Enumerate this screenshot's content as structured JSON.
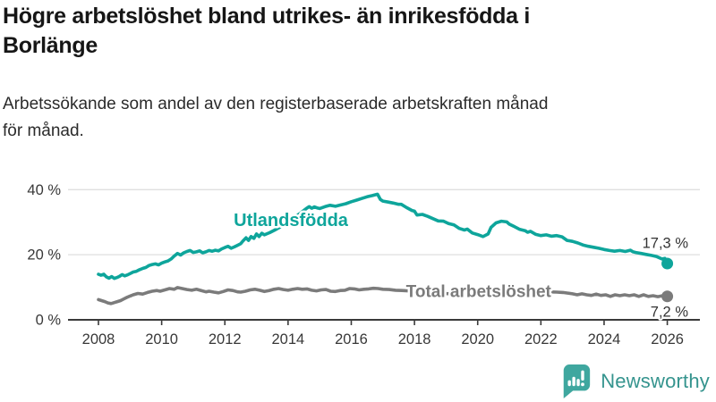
{
  "header": {
    "title": "Högre arbetslöshet bland utrikes- än inrikesfödda i Borlänge",
    "title_lines": [
      "Högre arbetslöshet bland utrikes- än inrikesfödda i",
      "Borlänge"
    ],
    "subtitle_lines": [
      "Arbetssökande som andel av den registerbaserade arbetskraften månad",
      "för månad."
    ]
  },
  "footer": {
    "brand": "Newsworthy"
  },
  "colors": {
    "utlandsfodda_line": "#0EA59B",
    "total_line": "#7B7B7B",
    "gridline": "#DFDFDF",
    "axis": "#3A3A3A",
    "logo_icon": "#3FA79F",
    "logo_text": "#35948E"
  },
  "chart_data": {
    "type": "line",
    "title": "Högre arbetslöshet bland utrikes- än inrikesfödda i Borlänge",
    "subtitle": "Arbetssökande som andel av den registerbaserade arbetskraften månad för månad.",
    "xlabel": "",
    "ylabel": "",
    "xlim": [
      2007.05,
      2027.05
    ],
    "ylim": [
      0,
      42
    ],
    "grid": "horizontal",
    "legend_position": "inline-labels",
    "x_ticks": [
      {
        "v": 2008,
        "label": "2008"
      },
      {
        "v": 2010,
        "label": "2010"
      },
      {
        "v": 2012,
        "label": "2012"
      },
      {
        "v": 2014,
        "label": "2014"
      },
      {
        "v": 2016,
        "label": "2016"
      },
      {
        "v": 2018,
        "label": "2018"
      },
      {
        "v": 2020,
        "label": "2020"
      },
      {
        "v": 2022,
        "label": "2022"
      },
      {
        "v": 2024,
        "label": "2024"
      },
      {
        "v": 2026,
        "label": "2026"
      }
    ],
    "y_ticks": [
      {
        "v": 0,
        "label": "0 %"
      },
      {
        "v": 20,
        "label": "20 %"
      },
      {
        "v": 40,
        "label": "40 %"
      }
    ],
    "series": [
      {
        "name": "Utlandsfödda",
        "color": "#0EA59B",
        "label_pos": [
          2014.09,
          30.6
        ],
        "label_font": 20,
        "end_label": "17,3 %",
        "end_value": 17.3,
        "points": [
          [
            2008.0,
            14.0
          ],
          [
            2008.08,
            13.7
          ],
          [
            2008.17,
            14.0
          ],
          [
            2008.25,
            13.2
          ],
          [
            2008.33,
            12.8
          ],
          [
            2008.42,
            13.3
          ],
          [
            2008.5,
            12.7
          ],
          [
            2008.58,
            13.0
          ],
          [
            2008.67,
            13.4
          ],
          [
            2008.75,
            13.9
          ],
          [
            2008.83,
            13.5
          ],
          [
            2008.92,
            13.8
          ],
          [
            2009.0,
            14.2
          ],
          [
            2009.1,
            14.7
          ],
          [
            2009.2,
            14.9
          ],
          [
            2009.3,
            15.4
          ],
          [
            2009.4,
            15.8
          ],
          [
            2009.5,
            16.1
          ],
          [
            2009.6,
            16.7
          ],
          [
            2009.7,
            17.0
          ],
          [
            2009.8,
            17.2
          ],
          [
            2009.9,
            16.9
          ],
          [
            2010.0,
            17.4
          ],
          [
            2010.1,
            17.8
          ],
          [
            2010.2,
            18.1
          ],
          [
            2010.3,
            18.7
          ],
          [
            2010.4,
            19.6
          ],
          [
            2010.5,
            20.4
          ],
          [
            2010.6,
            19.9
          ],
          [
            2010.7,
            20.6
          ],
          [
            2010.8,
            21.0
          ],
          [
            2010.9,
            21.3
          ],
          [
            2011.0,
            20.7
          ],
          [
            2011.1,
            20.9
          ],
          [
            2011.2,
            21.2
          ],
          [
            2011.3,
            20.6
          ],
          [
            2011.4,
            20.9
          ],
          [
            2011.5,
            21.3
          ],
          [
            2011.6,
            21.1
          ],
          [
            2011.7,
            21.4
          ],
          [
            2011.8,
            21.2
          ],
          [
            2011.9,
            21.8
          ],
          [
            2012.0,
            22.2
          ],
          [
            2012.1,
            22.6
          ],
          [
            2012.2,
            22.0
          ],
          [
            2012.3,
            22.4
          ],
          [
            2012.4,
            22.9
          ],
          [
            2012.5,
            23.4
          ],
          [
            2012.58,
            24.3
          ],
          [
            2012.67,
            25.2
          ],
          [
            2012.75,
            24.4
          ],
          [
            2012.83,
            25.6
          ],
          [
            2012.92,
            25.0
          ],
          [
            2013.0,
            26.4
          ],
          [
            2013.08,
            25.6
          ],
          [
            2013.17,
            26.6
          ],
          [
            2013.25,
            26.1
          ],
          [
            2013.42,
            26.8
          ],
          [
            2013.58,
            27.6
          ],
          [
            2013.75,
            28.5
          ],
          [
            2013.92,
            29.5
          ],
          [
            2014.08,
            30.6
          ],
          [
            2014.25,
            31.8
          ],
          [
            2014.42,
            33.0
          ],
          [
            2014.5,
            33.6
          ],
          [
            2014.58,
            34.2
          ],
          [
            2014.67,
            34.8
          ],
          [
            2014.75,
            34.3
          ],
          [
            2014.83,
            34.7
          ],
          [
            2014.92,
            34.4
          ],
          [
            2015.0,
            34.2
          ],
          [
            2015.17,
            34.8
          ],
          [
            2015.33,
            35.2
          ],
          [
            2015.5,
            34.9
          ],
          [
            2015.67,
            35.3
          ],
          [
            2015.83,
            35.7
          ],
          [
            2016.0,
            36.3
          ],
          [
            2016.17,
            36.8
          ],
          [
            2016.33,
            37.3
          ],
          [
            2016.5,
            37.8
          ],
          [
            2016.67,
            38.2
          ],
          [
            2016.83,
            38.6
          ],
          [
            2016.92,
            37.0
          ],
          [
            2017.0,
            36.5
          ],
          [
            2017.17,
            36.2
          ],
          [
            2017.33,
            35.9
          ],
          [
            2017.5,
            35.5
          ],
          [
            2017.58,
            35.5
          ],
          [
            2017.75,
            34.5
          ],
          [
            2017.92,
            33.6
          ],
          [
            2018.0,
            33.4
          ],
          [
            2018.08,
            32.2
          ],
          [
            2018.25,
            32.4
          ],
          [
            2018.42,
            31.8
          ],
          [
            2018.58,
            31.1
          ],
          [
            2018.75,
            30.4
          ],
          [
            2018.92,
            30.3
          ],
          [
            2019.08,
            29.6
          ],
          [
            2019.25,
            29.2
          ],
          [
            2019.42,
            28.1
          ],
          [
            2019.58,
            27.6
          ],
          [
            2019.67,
            27.9
          ],
          [
            2019.83,
            26.7
          ],
          [
            2020.0,
            26.2
          ],
          [
            2020.17,
            25.6
          ],
          [
            2020.33,
            26.4
          ],
          [
            2020.42,
            28.4
          ],
          [
            2020.58,
            29.8
          ],
          [
            2020.75,
            30.3
          ],
          [
            2020.92,
            30.1
          ],
          [
            2021.0,
            29.4
          ],
          [
            2021.17,
            28.6
          ],
          [
            2021.33,
            27.8
          ],
          [
            2021.5,
            27.4
          ],
          [
            2021.58,
            26.9
          ],
          [
            2021.67,
            27.2
          ],
          [
            2021.83,
            26.3
          ],
          [
            2022.0,
            25.9
          ],
          [
            2022.17,
            26.1
          ],
          [
            2022.33,
            25.7
          ],
          [
            2022.5,
            25.9
          ],
          [
            2022.67,
            25.5
          ],
          [
            2022.83,
            24.4
          ],
          [
            2023.0,
            24.1
          ],
          [
            2023.17,
            23.6
          ],
          [
            2023.33,
            23.0
          ],
          [
            2023.5,
            22.6
          ],
          [
            2023.67,
            22.3
          ],
          [
            2023.83,
            22.0
          ],
          [
            2024.0,
            21.6
          ],
          [
            2024.17,
            21.3
          ],
          [
            2024.33,
            21.1
          ],
          [
            2024.5,
            21.3
          ],
          [
            2024.67,
            21.0
          ],
          [
            2024.83,
            21.4
          ],
          [
            2024.92,
            20.9
          ],
          [
            2025.0,
            20.7
          ],
          [
            2025.17,
            20.4
          ],
          [
            2025.33,
            20.1
          ],
          [
            2025.5,
            19.8
          ],
          [
            2025.67,
            19.4
          ],
          [
            2025.83,
            18.7
          ],
          [
            2025.92,
            18.9
          ],
          [
            2026.0,
            17.3
          ]
        ]
      },
      {
        "name": "Total arbetslöshet",
        "color": "#7B7B7B",
        "label_pos": [
          2020.03,
          8.8
        ],
        "label_font": 19,
        "end_label": "7,2 %",
        "end_value": 7.2,
        "points": [
          [
            2008.0,
            6.2
          ],
          [
            2008.1,
            5.9
          ],
          [
            2008.2,
            5.6
          ],
          [
            2008.3,
            5.2
          ],
          [
            2008.4,
            5.0
          ],
          [
            2008.5,
            5.3
          ],
          [
            2008.6,
            5.6
          ],
          [
            2008.7,
            5.9
          ],
          [
            2008.8,
            6.4
          ],
          [
            2008.9,
            6.9
          ],
          [
            2009.0,
            7.3
          ],
          [
            2009.1,
            7.7
          ],
          [
            2009.25,
            8.1
          ],
          [
            2009.4,
            7.9
          ],
          [
            2009.55,
            8.4
          ],
          [
            2009.7,
            8.8
          ],
          [
            2009.85,
            9.0
          ],
          [
            2009.95,
            8.8
          ],
          [
            2010.1,
            9.2
          ],
          [
            2010.25,
            9.6
          ],
          [
            2010.4,
            9.4
          ],
          [
            2010.5,
            9.9
          ],
          [
            2010.65,
            9.6
          ],
          [
            2010.8,
            9.3
          ],
          [
            2010.95,
            9.1
          ],
          [
            2011.1,
            9.4
          ],
          [
            2011.25,
            9.0
          ],
          [
            2011.4,
            8.6
          ],
          [
            2011.5,
            8.8
          ],
          [
            2011.65,
            8.5
          ],
          [
            2011.8,
            8.3
          ],
          [
            2011.95,
            8.7
          ],
          [
            2012.1,
            9.2
          ],
          [
            2012.25,
            9.0
          ],
          [
            2012.4,
            8.6
          ],
          [
            2012.5,
            8.5
          ],
          [
            2012.65,
            8.8
          ],
          [
            2012.8,
            9.2
          ],
          [
            2012.95,
            9.4
          ],
          [
            2013.1,
            9.1
          ],
          [
            2013.25,
            8.7
          ],
          [
            2013.4,
            9.0
          ],
          [
            2013.55,
            9.4
          ],
          [
            2013.7,
            9.6
          ],
          [
            2013.85,
            9.3
          ],
          [
            2014.0,
            9.1
          ],
          [
            2014.15,
            9.4
          ],
          [
            2014.3,
            9.6
          ],
          [
            2014.45,
            9.4
          ],
          [
            2014.6,
            9.5
          ],
          [
            2014.75,
            9.1
          ],
          [
            2014.9,
            8.9
          ],
          [
            2015.05,
            9.2
          ],
          [
            2015.2,
            9.3
          ],
          [
            2015.35,
            8.8
          ],
          [
            2015.5,
            8.7
          ],
          [
            2015.65,
            9.0
          ],
          [
            2015.8,
            9.1
          ],
          [
            2015.95,
            9.6
          ],
          [
            2016.1,
            9.5
          ],
          [
            2016.25,
            9.2
          ],
          [
            2016.4,
            9.4
          ],
          [
            2016.55,
            9.5
          ],
          [
            2016.7,
            9.7
          ],
          [
            2016.85,
            9.6
          ],
          [
            2017.0,
            9.4
          ],
          [
            2017.2,
            9.3
          ],
          [
            2017.4,
            9.1
          ],
          [
            2017.6,
            9.0
          ],
          [
            2017.8,
            8.9
          ],
          [
            2018.0,
            8.7
          ],
          [
            2018.3,
            8.5
          ],
          [
            2018.6,
            8.3
          ],
          [
            2018.9,
            8.1
          ],
          [
            2019.2,
            8.0
          ],
          [
            2019.5,
            7.9
          ],
          [
            2019.8,
            8.0
          ],
          [
            2020.0,
            8.3
          ],
          [
            2020.2,
            9.0
          ],
          [
            2020.4,
            9.4
          ],
          [
            2020.6,
            9.5
          ],
          [
            2020.8,
            9.4
          ],
          [
            2021.0,
            9.2
          ],
          [
            2021.3,
            9.0
          ],
          [
            2021.6,
            8.8
          ],
          [
            2021.9,
            8.7
          ],
          [
            2022.2,
            8.6
          ],
          [
            2022.5,
            8.5
          ],
          [
            2022.7,
            8.4
          ],
          [
            2022.85,
            8.2
          ],
          [
            2023.0,
            8.0
          ],
          [
            2023.15,
            7.7
          ],
          [
            2023.3,
            8.0
          ],
          [
            2023.45,
            7.7
          ],
          [
            2023.6,
            7.5
          ],
          [
            2023.75,
            7.9
          ],
          [
            2023.9,
            7.5
          ],
          [
            2024.05,
            7.7
          ],
          [
            2024.2,
            7.2
          ],
          [
            2024.35,
            7.7
          ],
          [
            2024.5,
            7.4
          ],
          [
            2024.65,
            7.7
          ],
          [
            2024.8,
            7.4
          ],
          [
            2024.95,
            7.7
          ],
          [
            2025.1,
            7.2
          ],
          [
            2025.25,
            7.7
          ],
          [
            2025.4,
            7.2
          ],
          [
            2025.55,
            7.4
          ],
          [
            2025.7,
            7.1
          ],
          [
            2025.85,
            7.4
          ],
          [
            2025.93,
            7.1
          ],
          [
            2026.0,
            7.2
          ]
        ]
      }
    ]
  }
}
